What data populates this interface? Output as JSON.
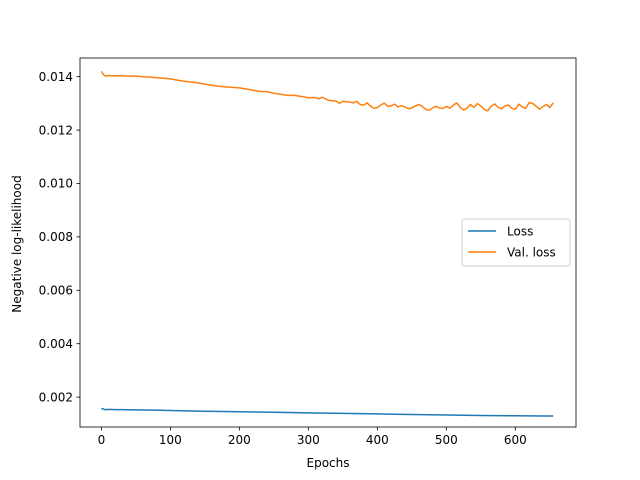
{
  "chart_data": {
    "type": "line",
    "title": "",
    "xlabel": "Epochs",
    "ylabel": "Negative log-likelihood",
    "xlim": [
      -31,
      688
    ],
    "ylim": [
      0.00088,
      0.0147
    ],
    "xticks": [
      0,
      100,
      200,
      300,
      400,
      500,
      600
    ],
    "yticks": [
      0.002,
      0.004,
      0.006,
      0.008,
      0.01,
      0.012,
      0.014
    ],
    "ytick_labels": [
      "0.002",
      "0.004",
      "0.006",
      "0.008",
      "0.010",
      "0.012",
      "0.014"
    ],
    "grid": false,
    "legend": "center-right",
    "series": [
      {
        "name": "Loss",
        "color": "#1f77b4",
        "x": [
          0,
          5,
          10,
          20,
          30,
          50,
          75,
          100,
          150,
          200,
          250,
          300,
          350,
          400,
          450,
          500,
          550,
          600,
          640,
          655
        ],
        "y": [
          0.00158,
          0.00153,
          0.00154,
          0.00153,
          0.00153,
          0.00152,
          0.00151,
          0.0015,
          0.00147,
          0.00145,
          0.00143,
          0.00141,
          0.00139,
          0.00137,
          0.00135,
          0.00133,
          0.00131,
          0.0013,
          0.00129,
          0.00129
        ]
      },
      {
        "name": "Val. loss",
        "color": "#ff7f0e",
        "x": [
          0,
          3,
          6,
          10,
          20,
          30,
          40,
          50,
          60,
          70,
          80,
          90,
          100,
          110,
          120,
          130,
          140,
          150,
          160,
          170,
          180,
          190,
          200,
          210,
          220,
          230,
          240,
          250,
          260,
          270,
          280,
          290,
          300,
          310,
          315,
          320,
          330,
          340,
          345,
          350,
          355,
          360,
          365,
          370,
          375,
          380,
          385,
          390,
          395,
          400,
          405,
          410,
          415,
          420,
          425,
          430,
          435,
          440,
          445,
          450,
          455,
          460,
          465,
          470,
          475,
          480,
          485,
          490,
          495,
          500,
          505,
          510,
          515,
          520,
          525,
          530,
          535,
          540,
          545,
          550,
          555,
          560,
          565,
          570,
          575,
          580,
          585,
          590,
          595,
          600,
          605,
          610,
          615,
          620,
          625,
          630,
          635,
          640,
          645,
          650,
          655
        ],
        "y": [
          0.0142,
          0.01408,
          0.01402,
          0.01404,
          0.01403,
          0.01404,
          0.01402,
          0.01402,
          0.014,
          0.01399,
          0.01396,
          0.01394,
          0.01392,
          0.01387,
          0.01383,
          0.0138,
          0.01377,
          0.01372,
          0.01368,
          0.01364,
          0.01362,
          0.0136,
          0.01358,
          0.01354,
          0.01349,
          0.01345,
          0.01344,
          0.01338,
          0.01334,
          0.0133,
          0.0133,
          0.01326,
          0.01321,
          0.01322,
          0.01317,
          0.01323,
          0.01311,
          0.01309,
          0.013,
          0.01308,
          0.01306,
          0.01305,
          0.01302,
          0.01308,
          0.01296,
          0.01293,
          0.01302,
          0.0129,
          0.01282,
          0.01284,
          0.01294,
          0.01301,
          0.01289,
          0.01291,
          0.01297,
          0.01287,
          0.01291,
          0.01287,
          0.0128,
          0.01283,
          0.0129,
          0.01296,
          0.01289,
          0.01278,
          0.01274,
          0.01283,
          0.01289,
          0.01283,
          0.01281,
          0.01289,
          0.01282,
          0.01293,
          0.01302,
          0.01286,
          0.01275,
          0.01282,
          0.01296,
          0.01285,
          0.01299,
          0.0129,
          0.01278,
          0.01272,
          0.01289,
          0.01298,
          0.01285,
          0.0128,
          0.0129,
          0.01294,
          0.01282,
          0.01278,
          0.01297,
          0.01287,
          0.01281,
          0.01303,
          0.013,
          0.0129,
          0.01278,
          0.01288,
          0.01296,
          0.01285,
          0.01302
        ]
      }
    ]
  }
}
